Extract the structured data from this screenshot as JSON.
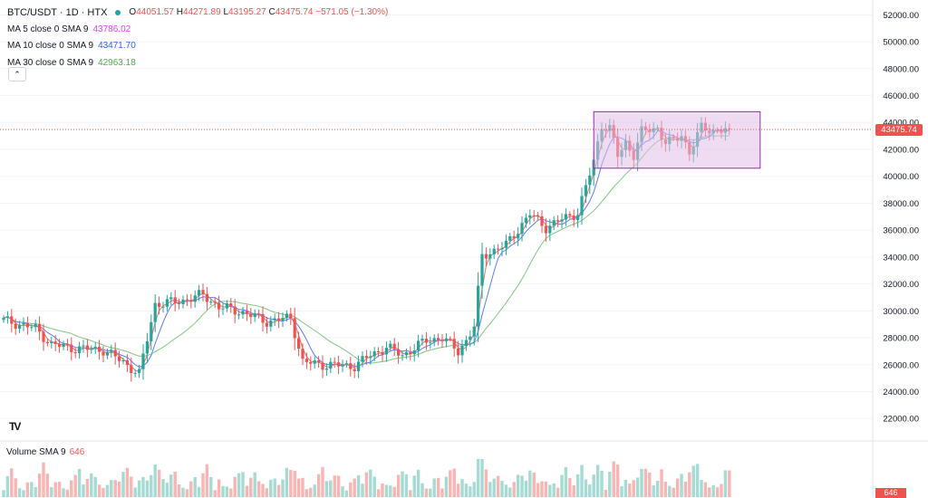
{
  "header": {
    "symbol": "BTC/USDT · 1D · HTX",
    "status_color": "#26a69a",
    "open_label": "O",
    "open": "44051.57",
    "high_label": "H",
    "high": "44271.89",
    "low_label": "L",
    "low": "43195.27",
    "close_label": "C",
    "close": "43475.74",
    "change": "−571.05 (−1.30%)"
  },
  "indicators": [
    {
      "label": "MA 5 close 0 SMA 9",
      "value": "43786.02",
      "color": "#e040fb"
    },
    {
      "label": "MA 10 close 0 SMA 9",
      "value": "43471.70",
      "color": "#2962ff"
    },
    {
      "label": "MA 30 close 0 SMA 9",
      "value": "42963.18",
      "color": "#4caf50"
    }
  ],
  "volume": {
    "label": "Volume SMA 9",
    "value": "646"
  },
  "price_scale_tag": "43475.74",
  "volume_scale_tag": "646",
  "logo": "TV",
  "colors": {
    "up": "#26a69a",
    "down": "#ef5350",
    "highlight": "#e1bee7",
    "highlight_border": "#9c27b0"
  },
  "chart_data": {
    "type": "candlestick",
    "y_ticks": [
      "22000.00",
      "24000.00",
      "26000.00",
      "28000.00",
      "30000.00",
      "32000.00",
      "34000.00",
      "36000.00",
      "38000.00",
      "40000.00",
      "42000.00",
      "44000.00",
      "46000.00",
      "48000.00",
      "50000.00",
      "52000.00"
    ],
    "ylim": [
      20400,
      53100
    ],
    "last_price": 43475.74,
    "highlight_box": {
      "x_from_bar": 148,
      "x_to_bar": 182,
      "y_from": 40600,
      "y_to": 44800
    },
    "close_path": [
      [
        0,
        29300
      ],
      [
        8,
        28700
      ],
      [
        12,
        27500
      ],
      [
        18,
        27200
      ],
      [
        25,
        27100
      ],
      [
        30,
        26200
      ],
      [
        34,
        25300
      ],
      [
        38,
        30500
      ],
      [
        44,
        30700
      ],
      [
        50,
        31200
      ],
      [
        54,
        30300
      ],
      [
        60,
        29900
      ],
      [
        66,
        29200
      ],
      [
        72,
        29500
      ],
      [
        75,
        26200
      ],
      [
        80,
        26000
      ],
      [
        88,
        25900
      ],
      [
        92,
        26700
      ],
      [
        96,
        27300
      ],
      [
        100,
        26700
      ],
      [
        106,
        27800
      ],
      [
        110,
        28000
      ],
      [
        114,
        27000
      ],
      [
        116,
        27800
      ],
      [
        118,
        28800
      ],
      [
        120,
        34100
      ],
      [
        126,
        34900
      ],
      [
        132,
        37200
      ],
      [
        136,
        36200
      ],
      [
        140,
        36800
      ],
      [
        144,
        37300
      ],
      [
        148,
        41100
      ],
      [
        150,
        43800
      ],
      [
        152,
        43600
      ],
      [
        154,
        41500
      ],
      [
        156,
        42500
      ],
      [
        158,
        41600
      ],
      [
        160,
        43300
      ],
      [
        164,
        43600
      ],
      [
        166,
        42500
      ],
      [
        168,
        42600
      ],
      [
        170,
        43100
      ],
      [
        172,
        41800
      ],
      [
        175,
        43600
      ],
      [
        178,
        43400
      ],
      [
        182,
        43476
      ]
    ],
    "ma_lags": {
      "ma5": 3,
      "ma10": 6,
      "ma30": 18
    }
  }
}
